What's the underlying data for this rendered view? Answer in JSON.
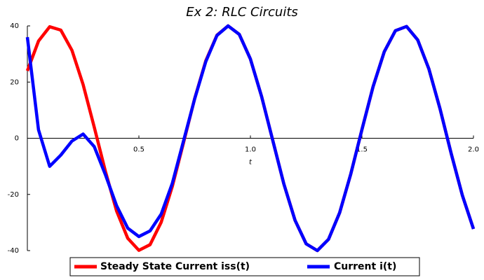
{
  "chart_data": {
    "type": "line",
    "title": "Ex 2: RLC Circuits",
    "x_label": "t",
    "x": [
      0,
      0.05,
      0.1,
      0.15,
      0.2,
      0.25,
      0.3,
      0.35,
      0.4,
      0.45,
      0.5,
      0.55,
      0.6,
      0.65,
      0.7,
      0.75,
      0.8,
      0.85,
      0.9,
      0.95,
      1,
      1.05,
      1.1,
      1.15,
      1.2,
      1.25,
      1.3,
      1.35,
      1.4,
      1.45,
      1.5,
      1.55,
      1.6,
      1.65,
      1.7,
      1.75,
      1.8,
      1.85,
      1.9,
      1.95,
      2
    ],
    "series": [
      {
        "name": "Steady State Current iss(t)",
        "color": "#ff0000",
        "values": [
          24,
          34.6,
          39.7,
          38.5,
          31.3,
          19.1,
          3.9,
          -11.8,
          -25.9,
          -35.6,
          -39.9,
          -37.9,
          -29.9,
          -17.1,
          -1.6,
          14.1,
          27.6,
          36.7,
          40,
          37,
          28.2,
          14.9,
          -0.7,
          -16.3,
          -29.2,
          -37.6,
          -40,
          -36,
          -26.5,
          -12.7,
          3.1,
          18.4,
          30.8,
          38.3,
          39.8,
          35,
          24.7,
          10.5,
          -5.4,
          -20.3,
          -32.3
        ]
      },
      {
        "name": "Current i(t)",
        "color": "#0000ff",
        "values": [
          36,
          3,
          -10,
          -6,
          -1,
          1.5,
          -3,
          -13,
          -24,
          -32,
          -35,
          -33,
          -27,
          -16,
          -1,
          14,
          27.3,
          36.6,
          40,
          37,
          28.2,
          14.9,
          -0.7,
          -16.3,
          -29.2,
          -37.6,
          -40,
          -36,
          -26.5,
          -12.7,
          3.1,
          18.4,
          30.8,
          38.3,
          39.8,
          35,
          24.7,
          10.5,
          -5.4,
          -20.3,
          -32.3
        ]
      }
    ],
    "xlim": [
      0,
      2
    ],
    "xticks": [
      0.5,
      {
        "value": 1,
        "label": "1.0"
      },
      1.5,
      {
        "value": 2,
        "label": "2.0"
      }
    ],
    "ylim": [
      -40,
      40
    ],
    "yticks": [
      -40,
      -20,
      0,
      20,
      40
    ],
    "legend": "bottom"
  }
}
